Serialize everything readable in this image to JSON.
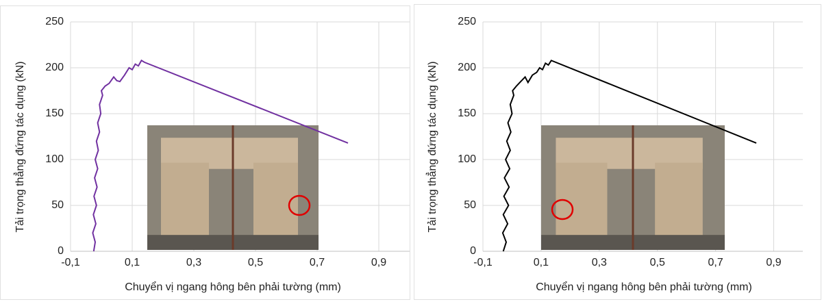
{
  "chart_data": [
    {
      "type": "line",
      "x_label": "Chuyển vị ngang hông bên phải tường (mm)",
      "y_label": "Tải trọng thẳng đứng tác dụng (kN)",
      "color": "#7030a0",
      "grid": true,
      "xlim": [
        -0.1,
        1.0
      ],
      "ylim": [
        0,
        250
      ],
      "xticks": [
        {
          "value": -0.1,
          "label": "-0,1"
        },
        {
          "value": 0.1,
          "label": "0,1"
        },
        {
          "value": 0.3,
          "label": "0,3"
        },
        {
          "value": 0.5,
          "label": "0,5"
        },
        {
          "value": 0.7,
          "label": "0,7"
        },
        {
          "value": 0.9,
          "label": "0,9"
        }
      ],
      "yticks": [
        0,
        50,
        100,
        150,
        200,
        250
      ],
      "x": [
        -0.025,
        -0.02,
        -0.028,
        -0.018,
        -0.026,
        -0.016,
        -0.024,
        -0.014,
        -0.022,
        -0.012,
        -0.02,
        -0.01,
        -0.016,
        -0.006,
        -0.012,
        -0.002,
        -0.006,
        0.004,
        0.0,
        0.012,
        0.025,
        0.04,
        0.05,
        0.06,
        0.075,
        0.09,
        0.1,
        0.11,
        0.12,
        0.13,
        0.14,
        0.8
      ],
      "values": [
        0,
        10,
        20,
        30,
        40,
        50,
        60,
        70,
        80,
        90,
        100,
        110,
        120,
        130,
        140,
        150,
        160,
        170,
        175,
        180,
        183,
        190,
        186,
        185,
        192,
        200,
        198,
        204,
        202,
        208,
        206,
        118
      ]
    },
    {
      "type": "line",
      "x_label": "Chuyển vị ngang hông bên phải tường (mm)",
      "y_label": "Tải trọng thẳng đứng tác dụng (kN)",
      "color": "#000000",
      "grid": true,
      "xlim": [
        -0.1,
        1.0
      ],
      "ylim": [
        0,
        250
      ],
      "xticks": [
        {
          "value": -0.1,
          "label": "-0,1"
        },
        {
          "value": 0.1,
          "label": "0,1"
        },
        {
          "value": 0.3,
          "label": "0,3"
        },
        {
          "value": 0.5,
          "label": "0,5"
        },
        {
          "value": 0.7,
          "label": "0,7"
        },
        {
          "value": 0.9,
          "label": "0,9"
        }
      ],
      "yticks": [
        0,
        50,
        100,
        150,
        200,
        250
      ],
      "x": [
        -0.03,
        -0.02,
        -0.032,
        -0.015,
        -0.03,
        -0.012,
        -0.028,
        -0.01,
        -0.026,
        -0.008,
        -0.022,
        -0.006,
        -0.018,
        -0.004,
        -0.014,
        0.0,
        -0.006,
        0.006,
        0.002,
        0.015,
        0.03,
        0.045,
        0.055,
        0.07,
        0.085,
        0.095,
        0.105,
        0.115,
        0.125,
        0.135,
        0.84
      ],
      "values": [
        0,
        10,
        20,
        30,
        40,
        50,
        60,
        70,
        80,
        90,
        100,
        110,
        120,
        130,
        140,
        150,
        160,
        170,
        175,
        180,
        185,
        190,
        184,
        192,
        195,
        200,
        198,
        205,
        203,
        208,
        118
      ]
    }
  ]
}
